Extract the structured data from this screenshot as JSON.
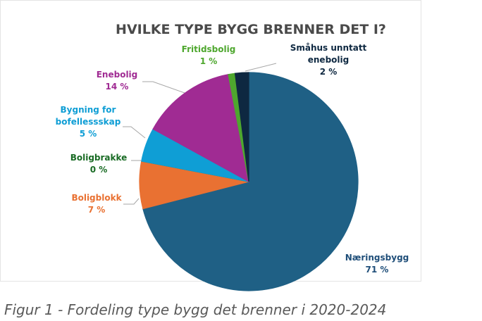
{
  "chart_data": {
    "type": "pie",
    "title": "HVILKE TYPE BYGG BRENNER DET I?",
    "categories": [
      "Næringsbygg",
      "Boligblokk",
      "Boligbrakke",
      "Bygning for bofellessskap",
      "Enebolig",
      "Fritidsbolig",
      "Småhus unntatt enebolig"
    ],
    "values": [
      71,
      7,
      0,
      5,
      14,
      1,
      2
    ],
    "value_labels": [
      "71 %",
      "7 %",
      "0 %",
      "5 %",
      "14 %",
      "1 %",
      "2 %"
    ],
    "colors": [
      "#1f6085",
      "#e97132",
      "#196b24",
      "#0f9ed5",
      "#a02b93",
      "#4ea72e",
      "#0e2841"
    ]
  },
  "caption": "Figur 1 - Fordeling type bygg det brenner i 2020-2024"
}
